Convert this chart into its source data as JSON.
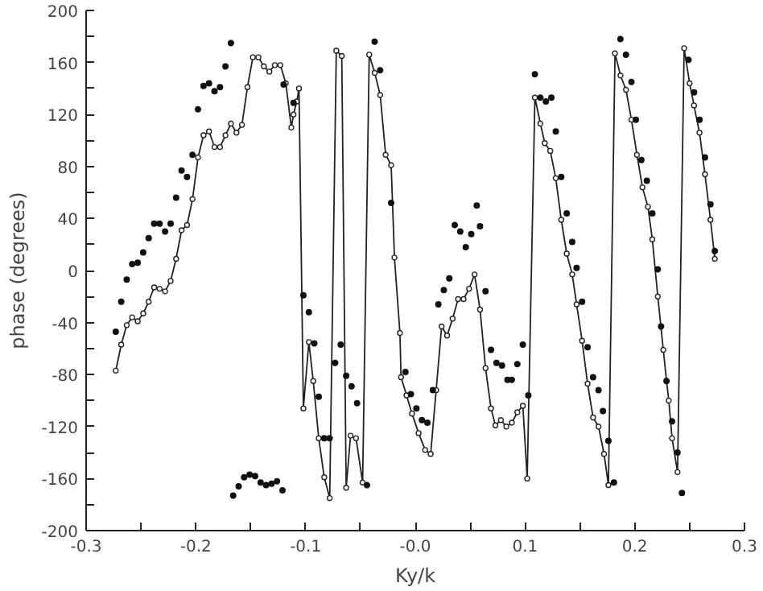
{
  "chart_data": {
    "type": "line",
    "xlabel": "Ky/k",
    "ylabel": "phase (degrees)",
    "xlim": [
      -0.3,
      0.3
    ],
    "ylim": [
      -200,
      200
    ],
    "xticks": [
      -0.3,
      {
        "value": -0.25,
        "label": null
      },
      -0.2,
      {
        "value": -0.15,
        "label": null
      },
      -0.1,
      {
        "value": -0.05,
        "label": null
      },
      {
        "value": 0,
        "label": "-0.0"
      },
      {
        "value": 0.05,
        "label": null
      },
      0.1,
      {
        "value": 0.15,
        "label": null
      },
      0.2,
      {
        "value": 0.25,
        "label": null
      },
      0.3
    ],
    "yticks": [
      -200,
      {
        "value": -180,
        "label": null
      },
      -160,
      {
        "value": -140,
        "label": null
      },
      -120,
      {
        "value": -100,
        "label": null
      },
      -80,
      {
        "value": -60,
        "label": null
      },
      -40,
      {
        "value": -20,
        "label": null
      },
      0,
      {
        "value": 20,
        "label": null
      },
      40,
      {
        "value": 60,
        "label": null
      },
      80,
      {
        "value": 100,
        "label": null
      },
      120,
      {
        "value": 140,
        "label": null
      },
      160,
      {
        "value": 180,
        "label": null
      },
      200
    ],
    "grid": false,
    "series": [
      {
        "marker": "circle",
        "line_style": "solid",
        "color": "#222222",
        "x": [
          -0.273,
          -0.268,
          -0.263,
          -0.258,
          -0.253,
          -0.248,
          -0.243,
          -0.238,
          -0.233,
          -0.228,
          -0.223,
          -0.218,
          -0.213,
          -0.208,
          -0.203,
          -0.198,
          -0.193,
          -0.188,
          -0.183,
          -0.178,
          -0.173,
          -0.168,
          -0.163,
          -0.158,
          -0.153,
          -0.148,
          -0.143,
          -0.138,
          -0.133,
          -0.128,
          -0.123,
          -0.118,
          -0.113,
          -0.111,
          -0.108,
          -0.106,
          -0.102,
          -0.097,
          -0.093,
          -0.088,
          -0.083,
          -0.078,
          -0.072,
          -0.067,
          -0.063,
          -0.059,
          -0.054,
          -0.048,
          -0.042,
          -0.037,
          -0.032,
          -0.027,
          -0.022,
          -0.019,
          -0.014,
          -0.013,
          -0.008,
          -0.003,
          0.003,
          0.009,
          0.014,
          0.019,
          0.024,
          0.029,
          0.034,
          0.039,
          0.044,
          0.049,
          0.054,
          0.059,
          0.064,
          0.069,
          0.073,
          0.078,
          0.083,
          0.088,
          0.093,
          0.098,
          0.102,
          0.109,
          0.114,
          0.118,
          0.123,
          0.128,
          0.133,
          0.138,
          0.143,
          0.147,
          0.152,
          0.157,
          0.162,
          0.167,
          0.172,
          0.176,
          0.182,
          0.187,
          0.192,
          0.197,
          0.202,
          0.207,
          0.212,
          0.216,
          0.221,
          0.226,
          0.229,
          0.231,
          0.234,
          0.239,
          0.245,
          0.25,
          0.254,
          0.259,
          0.264,
          0.269,
          0.273
        ],
        "values": [
          -77,
          -57,
          -42,
          -36,
          -39,
          -33,
          -24,
          -13,
          -14,
          -16,
          -8,
          9,
          31,
          35,
          55,
          87,
          104,
          107,
          95,
          95,
          104,
          113,
          106,
          112,
          141,
          164,
          164,
          157,
          153,
          158,
          158,
          144,
          110,
          120,
          130,
          140,
          -106,
          -55,
          -85,
          -129,
          -159,
          -175,
          169,
          165,
          -167,
          -127,
          -129,
          -163,
          166,
          152,
          135,
          89,
          81,
          10,
          -48,
          -82,
          -96,
          -110,
          -125,
          -138,
          -141,
          -92,
          -43,
          -50,
          -37,
          -22,
          -22,
          -14,
          -3,
          -30,
          -75,
          -106,
          -119,
          -115,
          -120,
          -117,
          -109,
          -104,
          -160,
          133,
          113,
          98,
          92,
          71,
          39,
          13,
          -3,
          -26,
          -54,
          -87,
          -113,
          -120,
          -141,
          -165,
          167,
          150,
          139,
          116,
          89,
          64,
          49,
          24,
          -20,
          -61,
          -85,
          -100,
          -129,
          -155,
          171,
          144,
          127,
          106,
          74,
          39,
          9
        ]
      },
      {
        "type": "scatter",
        "marker": "circle",
        "color": "#111111",
        "x": [
          -0.273,
          -0.268,
          -0.263,
          -0.258,
          -0.253,
          -0.248,
          -0.243,
          -0.238,
          -0.233,
          -0.228,
          -0.223,
          -0.218,
          -0.213,
          -0.208,
          -0.203,
          -0.198,
          -0.193,
          -0.188,
          -0.183,
          -0.178,
          -0.173,
          -0.168,
          -0.166,
          -0.161,
          -0.156,
          -0.151,
          -0.146,
          -0.141,
          -0.136,
          -0.131,
          -0.126,
          -0.121,
          -0.12,
          -0.111,
          -0.102,
          -0.097,
          -0.092,
          -0.088,
          -0.083,
          -0.078,
          -0.073,
          -0.068,
          -0.063,
          -0.058,
          -0.053,
          -0.044,
          -0.037,
          -0.032,
          -0.022,
          -0.009,
          -0.004,
          0.001,
          0.006,
          0.011,
          0.016,
          0.021,
          0.026,
          0.031,
          0.036,
          0.041,
          0.046,
          0.051,
          0.056,
          0.059,
          0.064,
          0.069,
          0.074,
          0.079,
          0.084,
          0.088,
          0.093,
          0.098,
          0.103,
          0.109,
          0.114,
          0.119,
          0.124,
          0.128,
          0.133,
          0.138,
          0.143,
          0.147,
          0.152,
          0.157,
          0.162,
          0.167,
          0.171,
          0.176,
          0.181,
          0.187,
          0.192,
          0.197,
          0.201,
          0.206,
          0.211,
          0.216,
          0.221,
          0.224,
          0.229,
          0.234,
          0.239,
          0.243,
          0.249,
          0.254,
          0.259,
          0.264,
          0.269,
          0.273
        ],
        "values": [
          -47,
          -24,
          -7,
          5,
          6,
          14,
          25,
          36,
          36,
          30,
          36,
          56,
          77,
          72,
          89,
          124,
          142,
          144,
          138,
          141,
          157,
          175,
          -173,
          -166,
          -159,
          -157,
          -158,
          -163,
          -165,
          -164,
          -162,
          -169,
          143,
          129,
          -19,
          -32,
          -56,
          -97,
          -129,
          -129,
          -71,
          -57,
          -81,
          -89,
          -102,
          -165,
          176,
          154,
          52,
          -78,
          -95,
          -106,
          -115,
          -117,
          -92,
          -26,
          -15,
          -6,
          35,
          30,
          18,
          28,
          50,
          34,
          -16,
          -61,
          -71,
          -73,
          -84,
          -84,
          -72,
          -57,
          -96,
          151,
          133,
          130,
          133,
          107,
          72,
          44,
          22,
          2,
          -24,
          -59,
          -82,
          -92,
          -108,
          -131,
          -163,
          178,
          166,
          145,
          116,
          85,
          69,
          44,
          1,
          -43,
          -85,
          -116,
          -140,
          -171,
          162,
          137,
          116,
          87,
          51,
          15
        ]
      }
    ]
  }
}
